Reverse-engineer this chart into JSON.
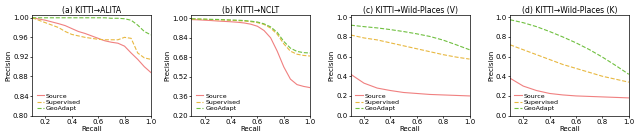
{
  "subplots": [
    {
      "title": "(a) KITTI→ALITA",
      "xlabel": "Recall",
      "ylabel": "Precision",
      "ylim": [
        0.8,
        1.005
      ],
      "yticks": [
        0.8,
        0.84,
        0.88,
        0.92,
        0.96,
        1.0
      ],
      "xticks": [
        0.2,
        0.4,
        0.6,
        0.8,
        1.0
      ],
      "source": {
        "x": [
          0.1,
          0.2,
          0.3,
          0.35,
          0.4,
          0.45,
          0.5,
          0.55,
          0.6,
          0.65,
          0.7,
          0.75,
          0.8,
          0.85,
          0.9,
          0.95,
          1.0
        ],
        "y": [
          1.0,
          0.995,
          0.988,
          0.984,
          0.978,
          0.972,
          0.968,
          0.963,
          0.958,
          0.953,
          0.95,
          0.948,
          0.942,
          0.928,
          0.915,
          0.9,
          0.888
        ],
        "color": "#f08080",
        "style": "solid"
      },
      "supervised": {
        "x": [
          0.1,
          0.2,
          0.3,
          0.35,
          0.4,
          0.45,
          0.5,
          0.55,
          0.6,
          0.65,
          0.7,
          0.75,
          0.8,
          0.85,
          0.9,
          0.95,
          1.0
        ],
        "y": [
          1.0,
          0.99,
          0.98,
          0.972,
          0.966,
          0.963,
          0.96,
          0.958,
          0.956,
          0.955,
          0.955,
          0.955,
          0.96,
          0.958,
          0.928,
          0.918,
          0.915
        ],
        "color": "#e8b840",
        "style": "dashed"
      },
      "geoadapt": {
        "x": [
          0.1,
          0.2,
          0.3,
          0.35,
          0.4,
          0.45,
          0.5,
          0.55,
          0.6,
          0.65,
          0.7,
          0.75,
          0.8,
          0.85,
          0.9,
          0.95,
          1.0
        ],
        "y": [
          1.0,
          1.0,
          1.0,
          1.0,
          1.0,
          1.0,
          1.0,
          1.0,
          1.0,
          1.0,
          0.999,
          0.999,
          0.998,
          0.995,
          0.985,
          0.972,
          0.965
        ],
        "color": "#70c040",
        "style": "dashed"
      }
    },
    {
      "title": "(b) KITTI→NCLT",
      "xlabel": "Recall",
      "ylabel": "Precision",
      "ylim": [
        0.2,
        1.025
      ],
      "yticks": [
        0.2,
        0.36,
        0.52,
        0.68,
        0.84,
        1.0
      ],
      "xticks": [
        0.2,
        0.4,
        0.6,
        0.8,
        1.0
      ],
      "source": {
        "x": [
          0.1,
          0.15,
          0.2,
          0.25,
          0.3,
          0.35,
          0.4,
          0.45,
          0.5,
          0.55,
          0.6,
          0.65,
          0.7,
          0.75,
          0.8,
          0.85,
          0.9,
          0.95,
          1.0
        ],
        "y": [
          0.99,
          0.988,
          0.985,
          0.982,
          0.978,
          0.975,
          0.972,
          0.968,
          0.962,
          0.952,
          0.935,
          0.9,
          0.84,
          0.73,
          0.6,
          0.5,
          0.455,
          0.44,
          0.43
        ],
        "color": "#f08080",
        "style": "solid"
      },
      "supervised": {
        "x": [
          0.1,
          0.15,
          0.2,
          0.25,
          0.3,
          0.35,
          0.4,
          0.45,
          0.5,
          0.55,
          0.6,
          0.65,
          0.7,
          0.75,
          0.8,
          0.85,
          0.9,
          0.95,
          1.0
        ],
        "y": [
          0.995,
          0.993,
          0.992,
          0.99,
          0.988,
          0.986,
          0.984,
          0.981,
          0.978,
          0.973,
          0.965,
          0.95,
          0.92,
          0.87,
          0.79,
          0.73,
          0.705,
          0.695,
          0.69
        ],
        "color": "#e8b840",
        "style": "dashed"
      },
      "geoadapt": {
        "x": [
          0.1,
          0.15,
          0.2,
          0.25,
          0.3,
          0.35,
          0.4,
          0.45,
          0.5,
          0.55,
          0.6,
          0.65,
          0.7,
          0.75,
          0.8,
          0.85,
          0.9,
          0.95,
          1.0
        ],
        "y": [
          0.997,
          0.995,
          0.994,
          0.992,
          0.991,
          0.989,
          0.987,
          0.985,
          0.982,
          0.977,
          0.97,
          0.955,
          0.93,
          0.885,
          0.81,
          0.755,
          0.728,
          0.718,
          0.715
        ],
        "color": "#70c040",
        "style": "dashed"
      }
    },
    {
      "title": "(c) KITTI→Wild-Places (V)",
      "xlabel": "Recall",
      "ylabel": "Precision",
      "ylim": [
        0.0,
        1.02
      ],
      "yticks": [
        0.0,
        0.2,
        0.4,
        0.6,
        0.8,
        1.0
      ],
      "xticks": [
        0.2,
        0.4,
        0.6,
        0.8,
        1.0
      ],
      "source": {
        "x": [
          0.1,
          0.2,
          0.3,
          0.4,
          0.5,
          0.6,
          0.7,
          0.8,
          0.9,
          1.0
        ],
        "y": [
          0.42,
          0.33,
          0.28,
          0.255,
          0.235,
          0.225,
          0.215,
          0.21,
          0.205,
          0.2
        ],
        "color": "#f08080",
        "style": "solid"
      },
      "supervised": {
        "x": [
          0.1,
          0.2,
          0.3,
          0.4,
          0.5,
          0.6,
          0.7,
          0.8,
          0.9,
          1.0
        ],
        "y": [
          0.82,
          0.79,
          0.77,
          0.74,
          0.71,
          0.68,
          0.65,
          0.62,
          0.595,
          0.575
        ],
        "color": "#e8b840",
        "style": "dashed"
      },
      "geoadapt": {
        "x": [
          0.1,
          0.2,
          0.3,
          0.4,
          0.5,
          0.6,
          0.7,
          0.8,
          0.9,
          1.0
        ],
        "y": [
          0.92,
          0.905,
          0.892,
          0.875,
          0.855,
          0.832,
          0.805,
          0.768,
          0.72,
          0.67
        ],
        "color": "#70c040",
        "style": "dashed"
      }
    },
    {
      "title": "(d) KITTI→Wild-Places (K)",
      "xlabel": "Recall",
      "ylabel": "Precision",
      "ylim": [
        0.0,
        1.02
      ],
      "yticks": [
        0.0,
        0.2,
        0.4,
        0.6,
        0.8,
        1.0
      ],
      "xticks": [
        0.2,
        0.4,
        0.6,
        0.8,
        1.0
      ],
      "source": {
        "x": [
          0.1,
          0.2,
          0.3,
          0.4,
          0.5,
          0.6,
          0.7,
          0.8,
          0.9,
          1.0
        ],
        "y": [
          0.38,
          0.3,
          0.255,
          0.225,
          0.21,
          0.2,
          0.195,
          0.19,
          0.185,
          0.18
        ],
        "color": "#f08080",
        "style": "solid"
      },
      "supervised": {
        "x": [
          0.1,
          0.2,
          0.3,
          0.4,
          0.5,
          0.6,
          0.7,
          0.8,
          0.9,
          1.0
        ],
        "y": [
          0.72,
          0.67,
          0.62,
          0.57,
          0.52,
          0.48,
          0.44,
          0.4,
          0.37,
          0.34
        ],
        "color": "#e8b840",
        "style": "dashed"
      },
      "geoadapt": {
        "x": [
          0.1,
          0.2,
          0.3,
          0.4,
          0.5,
          0.6,
          0.7,
          0.8,
          0.9,
          1.0
        ],
        "y": [
          0.975,
          0.945,
          0.905,
          0.855,
          0.8,
          0.74,
          0.672,
          0.595,
          0.51,
          0.42
        ],
        "color": "#70c040",
        "style": "dashed"
      }
    }
  ],
  "legend_labels": [
    "Source",
    "Supervised",
    "GeoAdapt"
  ],
  "legend_colors": [
    "#f08080",
    "#e8b840",
    "#70c040"
  ],
  "legend_styles": [
    "solid",
    "dashed",
    "dashed"
  ],
  "line_width": 0.8,
  "font_size": 5.0,
  "title_font_size": 5.5,
  "label_font_size": 5.0
}
